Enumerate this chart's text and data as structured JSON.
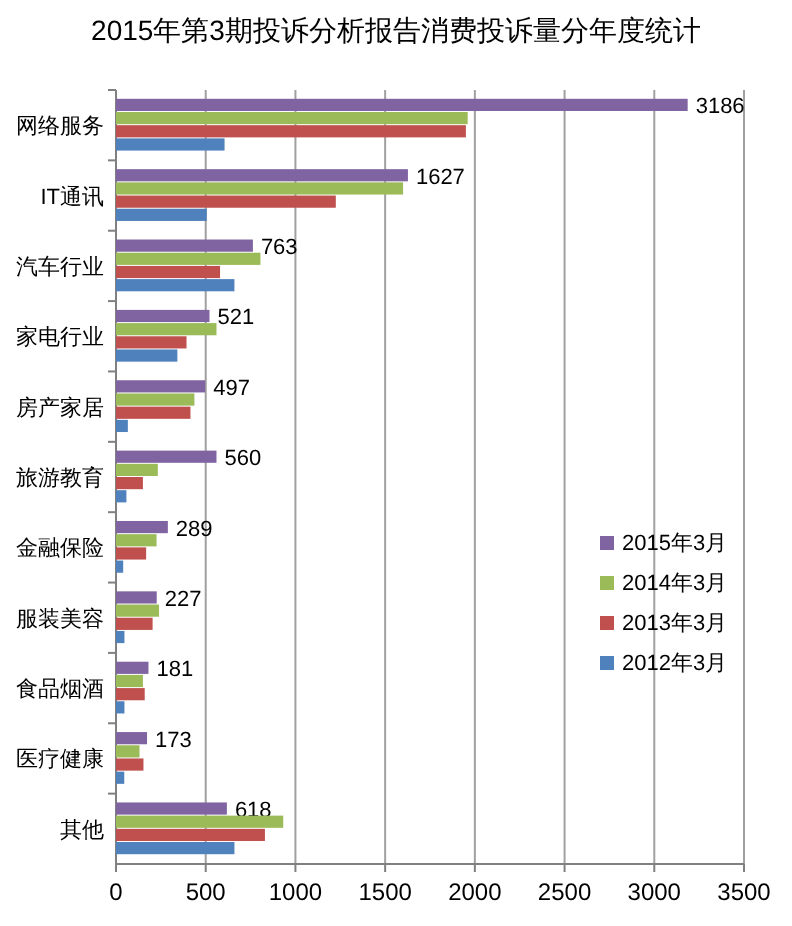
{
  "chart_data": {
    "type": "bar",
    "orientation": "horizontal",
    "title": "2015年第3期投诉分析报告消费投诉量分年度统计",
    "categories": [
      "网络服务",
      "IT通讯",
      "汽车行业",
      "家电行业",
      "房产家居",
      "旅游教育",
      "金融保险",
      "服装美容",
      "食品烟酒",
      "医疗健康",
      "其他"
    ],
    "series": [
      {
        "name": "2015年3月",
        "color": "#8064a2",
        "values": [
          3186,
          1627,
          763,
          521,
          497,
          560,
          289,
          227,
          181,
          173,
          618
        ],
        "value_labels": [
          "3186",
          "1627",
          "763",
          "521",
          "497",
          "560",
          "289",
          "227",
          "181",
          "173",
          "618"
        ]
      },
      {
        "name": "2014年3月",
        "color": "#9bbb59",
        "values": [
          1960,
          1600,
          805,
          560,
          437,
          233,
          226,
          240,
          150,
          131,
          932
        ]
      },
      {
        "name": "2013年3月",
        "color": "#c0504d",
        "values": [
          1950,
          1225,
          580,
          393,
          415,
          150,
          168,
          204,
          160,
          153,
          830
        ]
      },
      {
        "name": "2012年3月",
        "color": "#4f81bd",
        "values": [
          605,
          506,
          660,
          342,
          66,
          58,
          40,
          47,
          47,
          46,
          660
        ]
      }
    ],
    "xlim": [
      0,
      3500
    ],
    "xticks": [
      0,
      500,
      1000,
      1500,
      2000,
      2500,
      3000,
      3500
    ],
    "grid": "x",
    "legend": "right"
  }
}
